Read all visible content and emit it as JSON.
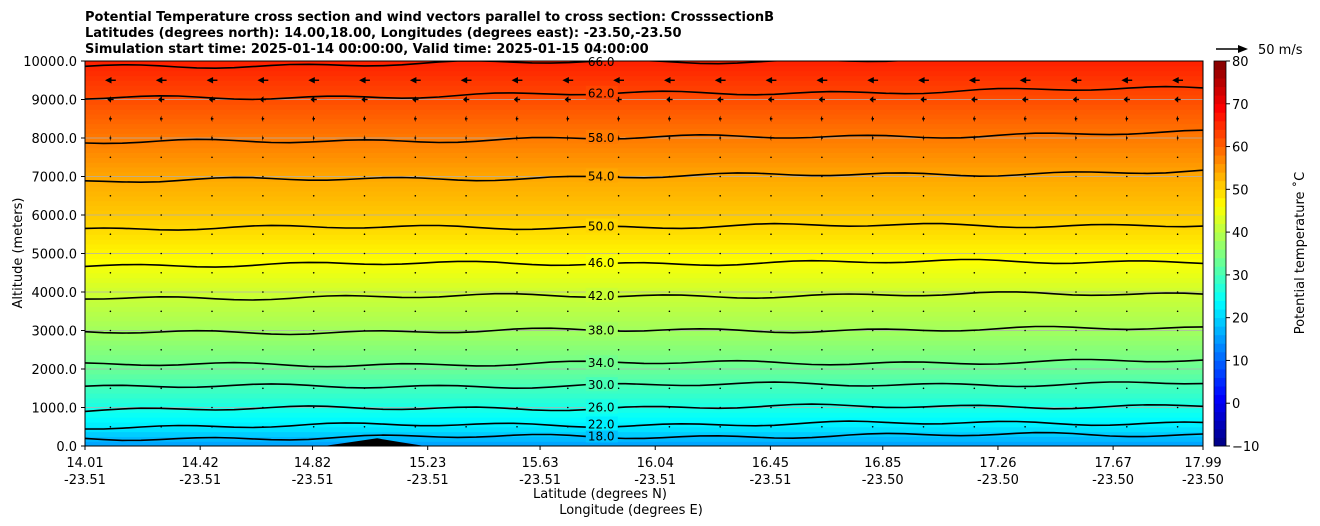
{
  "chart_data": {
    "type": "heatmap",
    "title_lines": [
      "Potential Temperature cross section and wind vectors parallel to cross section: CrosssectionB",
      "Latitudes (degrees north): 14.00,18.00, Longitudes (degrees east): -23.50,-23.50",
      "Simulation start time: 2025-01-14 00:00:00, Valid time: 2025-01-15 04:00:00"
    ],
    "xlabel_lat": "Latitude (degrees N)",
    "xlabel_lon": "Longitude (degrees E)",
    "ylabel": "Altitude (meters)",
    "x_ticks": [
      {
        "lat": "14.01",
        "lon": "-23.51",
        "value": 14.01
      },
      {
        "lat": "14.42",
        "lon": "-23.51",
        "value": 14.42
      },
      {
        "lat": "14.82",
        "lon": "-23.51",
        "value": 14.82
      },
      {
        "lat": "15.23",
        "lon": "-23.51",
        "value": 15.23
      },
      {
        "lat": "15.63",
        "lon": "-23.51",
        "value": 15.63
      },
      {
        "lat": "16.04",
        "lon": "-23.51",
        "value": 16.04
      },
      {
        "lat": "16.45",
        "lon": "-23.51",
        "value": 16.45
      },
      {
        "lat": "16.85",
        "lon": "-23.50",
        "value": 16.85
      },
      {
        "lat": "17.26",
        "lon": "-23.50",
        "value": 17.26
      },
      {
        "lat": "17.67",
        "lon": "-23.50",
        "value": 17.67
      },
      {
        "lat": "17.99",
        "lon": "-23.50",
        "value": 17.99
      }
    ],
    "xlim": [
      14.01,
      17.99
    ],
    "y_ticks": [
      "0.0",
      "1000.0",
      "2000.0",
      "3000.0",
      "4000.0",
      "5000.0",
      "6000.0",
      "7000.0",
      "8000.0",
      "9000.0",
      "10000.0"
    ],
    "ylim": [
      0,
      10000
    ],
    "grid": "horizontal",
    "colorbar": {
      "label": "Potential temperature $^\\circ$C",
      "label_display": "Potential temperature ˚C",
      "range": [
        -10,
        80
      ],
      "ticks": [
        "−10",
        "0",
        "10",
        "20",
        "30",
        "40",
        "50",
        "60",
        "70",
        "80"
      ],
      "colormap": "jet"
    },
    "vector_key": {
      "label": "50 m/s",
      "speed": 50
    },
    "contours": [
      {
        "label": "18.0",
        "altitude_m": 250
      },
      {
        "label": "22.0",
        "altitude_m": 560
      },
      {
        "label": "26.0",
        "altitude_m": 1000
      },
      {
        "label": "30.0",
        "altitude_m": 1580
      },
      {
        "label": "34.0",
        "altitude_m": 2150
      },
      {
        "label": "38.0",
        "altitude_m": 3000
      },
      {
        "label": "42.0",
        "altitude_m": 3900
      },
      {
        "label": "46.0",
        "altitude_m": 4750
      },
      {
        "label": "50.0",
        "altitude_m": 5700
      },
      {
        "label": "54.0",
        "altitude_m": 7000
      },
      {
        "label": "58.0",
        "altitude_m": 8000
      },
      {
        "label": "62.0",
        "altitude_m": 9150
      },
      {
        "label": "66.0",
        "altitude_m": 9980
      }
    ],
    "temperature_profile": [
      {
        "altitude_m": 0,
        "theta_c": 15
      },
      {
        "altitude_m": 500,
        "theta_c": 22
      },
      {
        "altitude_m": 1000,
        "theta_c": 26
      },
      {
        "altitude_m": 2000,
        "theta_c": 33
      },
      {
        "altitude_m": 3000,
        "theta_c": 38
      },
      {
        "altitude_m": 4000,
        "theta_c": 42
      },
      {
        "altitude_m": 5000,
        "theta_c": 47
      },
      {
        "altitude_m": 6000,
        "theta_c": 51
      },
      {
        "altitude_m": 7000,
        "theta_c": 54
      },
      {
        "altitude_m": 8000,
        "theta_c": 58
      },
      {
        "altitude_m": 9000,
        "theta_c": 62
      },
      {
        "altitude_m": 10000,
        "theta_c": 66
      }
    ],
    "wind_vectors_note_levels": [
      {
        "altitude_m": 9500,
        "u_ms": -12
      },
      {
        "altitude_m": 9000,
        "u_ms": -7
      },
      {
        "altitude_m": 8500,
        "u_ms": -3
      },
      {
        "altitude_m": 8000,
        "u_ms": -2
      },
      {
        "altitude_m": 7500,
        "u_ms": -1
      }
    ],
    "terrain": {
      "lat_start": 14.86,
      "lat_peak": 15.05,
      "lat_end": 15.22,
      "peak_altitude_m": 200
    }
  }
}
